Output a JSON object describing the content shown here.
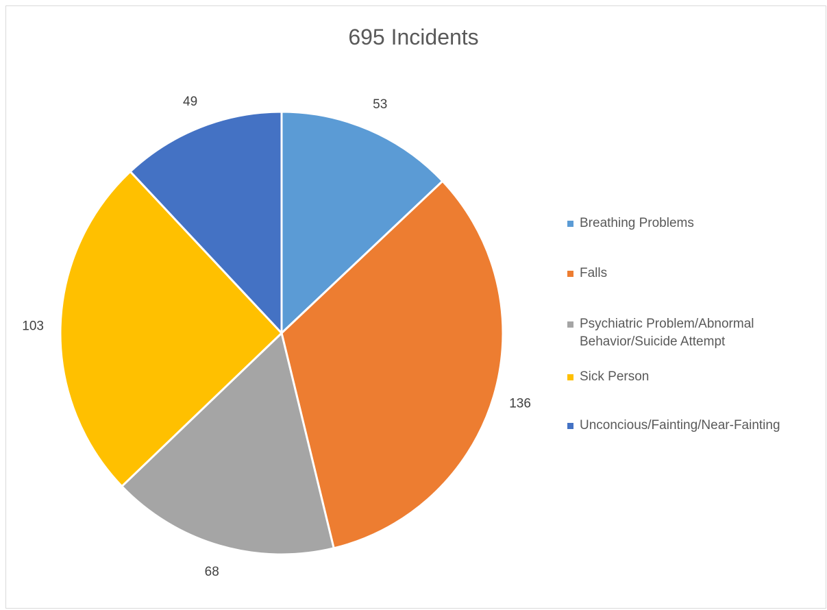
{
  "chart_data": {
    "type": "pie",
    "title": "695 Incidents",
    "categories": [
      "Breathing Problems",
      "Falls",
      "Psychiatric Problem/Abnormal Behavior/Suicide Attempt",
      "Sick Person",
      "Unconcious/Fainting/Near-Fainting"
    ],
    "values": [
      53,
      136,
      68,
      103,
      49
    ],
    "colors": [
      "#5b9bd5",
      "#ed7d31",
      "#a5a5a5",
      "#ffc000",
      "#4472c4"
    ],
    "legend_position": "right",
    "data_labels": "outside",
    "start_angle": "12 o'clock, clockwise"
  },
  "legend": {
    "items": [
      {
        "label": "Breathing Problems",
        "color": "#5b9bd5"
      },
      {
        "label": "Falls",
        "color": "#ed7d31"
      },
      {
        "label": "Psychiatric Problem/Abnormal\nBehavior/Suicide Attempt",
        "color": "#a5a5a5"
      },
      {
        "label": "Sick Person",
        "color": "#ffc000"
      },
      {
        "label": "Unconcious/Fainting/Near-Fainting",
        "color": "#4472c4"
      }
    ]
  }
}
